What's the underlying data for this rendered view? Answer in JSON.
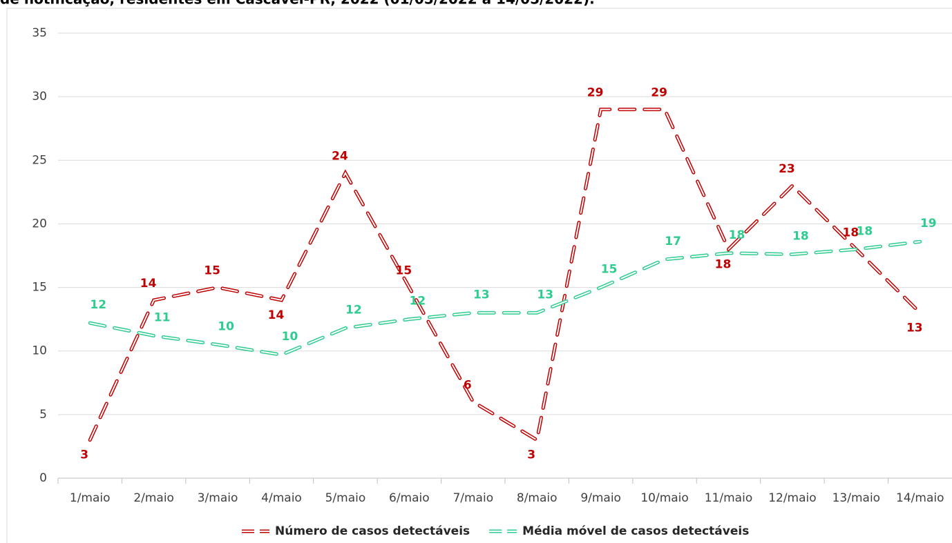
{
  "chart_data": {
    "type": "line",
    "title": "de notificação, residentes em Cascavel-PR, 2022 (01/05/2022 a 14/05/2022).",
    "categories": [
      "1/maio",
      "2/maio",
      "3/maio",
      "4/maio",
      "5/maio",
      "6/maio",
      "7/maio",
      "8/maio",
      "9/maio",
      "10/maio",
      "11/maio",
      "12/maio",
      "13/maio",
      "14/maio"
    ],
    "series": [
      {
        "name": "Número de casos detectáveis",
        "color": "#c00000",
        "values": [
          3,
          14,
          15,
          14,
          24,
          15,
          6,
          3,
          29,
          29,
          18,
          23,
          18,
          13
        ]
      },
      {
        "name": "Média móvel de casos detectáveis",
        "color": "#2ecc8f",
        "values": [
          12.2,
          11.2,
          10.5,
          9.7,
          11.8,
          12.5,
          13.0,
          13.0,
          15.0,
          17.2,
          17.7,
          17.6,
          18.0,
          18.6
        ],
        "value_labels": [
          "12",
          "11",
          "10",
          "10",
          "12",
          "12",
          "13",
          "13",
          "15",
          "17",
          "18",
          "18",
          "18",
          "19"
        ]
      }
    ],
    "ylim": [
      0,
      35
    ],
    "yticks": [
      0,
      5,
      10,
      15,
      20,
      25,
      30,
      35
    ],
    "grid": true,
    "legend": "bottom"
  }
}
